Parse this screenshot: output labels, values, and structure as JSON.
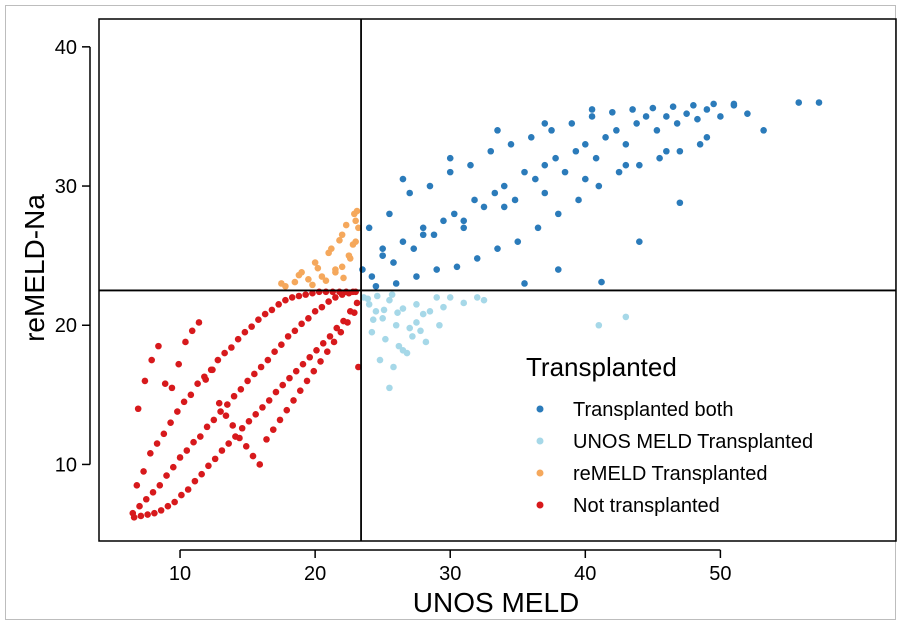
{
  "chart_data": {
    "type": "scatter",
    "xlabel": "UNOS MELD",
    "ylabel": "reMELD-Na",
    "xlim": [
      4,
      63
    ],
    "ylim": [
      4.5,
      42
    ],
    "xticks": [
      10,
      20,
      30,
      40,
      50
    ],
    "yticks": [
      10,
      20,
      30,
      40
    ],
    "grid": false,
    "legend_position": "lower-right inside plot",
    "reference_lines": {
      "vertical_x": 23.4,
      "horizontal_y": 22.5
    },
    "legend": {
      "title": "Transplanted",
      "entries": [
        {
          "label": "Transplanted both",
          "color": "#2b7bba"
        },
        {
          "label": "UNOS MELD Transplanted",
          "color": "#a6d8e8"
        },
        {
          "label": "reMELD Transplanted",
          "color": "#f5a85c"
        },
        {
          "label": "Not transplanted",
          "color": "#d7191c"
        }
      ]
    },
    "series": [
      {
        "name": "Transplanted both",
        "color": "#2b7bba",
        "x": [
          23.5,
          24.2,
          25,
          25.8,
          26.5,
          27.3,
          28,
          28.8,
          29.5,
          30.3,
          31,
          31.8,
          32.5,
          33.3,
          34,
          34.8,
          35.5,
          36.3,
          37,
          37.8,
          38.5,
          39.3,
          40,
          40.8,
          41.5,
          42.3,
          43,
          43.8,
          44.5,
          45.3,
          46,
          46.8,
          47.5,
          48.3,
          49,
          50,
          51,
          52,
          53.2,
          55.8,
          57.3,
          24,
          25.5,
          27,
          28.5,
          30,
          31.5,
          33,
          34.5,
          36,
          37.5,
          39,
          40.5,
          42,
          43.5,
          45,
          46.5,
          48,
          49.5,
          51,
          24.5,
          26,
          27.5,
          29,
          30.5,
          32,
          33.5,
          35,
          36.5,
          38,
          39.5,
          41,
          42.5,
          44,
          45.5,
          47,
          48.5,
          25,
          28,
          31,
          34,
          37,
          40,
          43,
          46,
          49,
          35.5,
          38,
          41.2,
          44,
          47,
          26.5,
          30,
          33.5,
          37,
          40.5
        ],
        "y": [
          24,
          23.5,
          25,
          24.5,
          26,
          25.5,
          27,
          26.5,
          27.5,
          28,
          27,
          29,
          28.5,
          29.5,
          30,
          29,
          31,
          30.5,
          31.5,
          32,
          31,
          32.5,
          33,
          32,
          33.5,
          34,
          33,
          34.5,
          35,
          34,
          35,
          34.5,
          35.2,
          34.8,
          35.5,
          35,
          35.8,
          35.2,
          34,
          36,
          36,
          27,
          28,
          29.5,
          30,
          31,
          31.5,
          32.5,
          33,
          33.5,
          34,
          34.5,
          35,
          35.3,
          35.5,
          35.6,
          35.7,
          35.8,
          35.9,
          35.9,
          22.8,
          23,
          23.5,
          24,
          24.2,
          24.8,
          25.5,
          26,
          27,
          28,
          29,
          30,
          31,
          31.5,
          32,
          32.5,
          33,
          25.5,
          26.5,
          27.5,
          28.5,
          29.5,
          30.5,
          31.5,
          32.5,
          33.5,
          23,
          24,
          23.1,
          26,
          28.8,
          30.5,
          32,
          34,
          34.5,
          35.5
        ]
      },
      {
        "name": "UNOS MELD Transplanted",
        "color": "#a6d8e8",
        "x": [
          23.6,
          24,
          24.5,
          25,
          25.5,
          26,
          26.5,
          27,
          27.5,
          28,
          28.5,
          29,
          29.5,
          30,
          31,
          32,
          32.5,
          24.2,
          25.2,
          26.2,
          27.2,
          28.2,
          29.2,
          24.8,
          25.8,
          26.8,
          27.8,
          25.5,
          26.5,
          27.5,
          41,
          43,
          24.3,
          25.1,
          26.1,
          23.9,
          24.6,
          25.7
        ],
        "y": [
          22,
          21.5,
          21,
          20.5,
          21.8,
          20,
          21.2,
          19.8,
          21.5,
          20.8,
          21,
          22,
          21.3,
          22,
          21.6,
          22,
          21.8,
          19.5,
          19,
          18.5,
          19.2,
          18.8,
          20,
          17.5,
          17,
          18,
          19.6,
          15.5,
          18.2,
          20.2,
          20,
          20.6,
          20.4,
          21.1,
          20.9,
          21.9,
          22.1,
          22.2
        ]
      },
      {
        "name": "reMELD Transplanted",
        "color": "#f5a85c",
        "x": [
          17.5,
          18.5,
          19.5,
          20.5,
          21.5,
          22,
          22.5,
          23,
          19,
          20,
          21,
          22,
          23,
          21.5,
          22.3,
          23.1,
          22.8,
          21.8,
          20.8,
          22.6,
          23.2,
          22.1,
          21.2,
          20.2,
          19.8,
          18.8,
          17.8,
          22.9
        ],
        "y": [
          23,
          23.1,
          23.3,
          23.5,
          23.8,
          24.2,
          25,
          26,
          23.8,
          24.5,
          25.2,
          26.5,
          27.5,
          24,
          27.2,
          28.2,
          25.8,
          26.1,
          23.2,
          24.8,
          27,
          23.4,
          25.5,
          24.1,
          22.9,
          23.6,
          22.8,
          28
        ]
      },
      {
        "name": "Not transplanted",
        "color": "#d7191c",
        "x": [
          6.5,
          7,
          7.5,
          8,
          8.5,
          9,
          9.5,
          10,
          10.5,
          11,
          11.5,
          12,
          12.5,
          13,
          13.5,
          14,
          14.5,
          15,
          15.5,
          16,
          16.5,
          17,
          17.5,
          18,
          18.5,
          19,
          19.5,
          20,
          20.5,
          21,
          21.5,
          22,
          22.5,
          23,
          23.2,
          6.8,
          7.3,
          7.8,
          8.3,
          8.8,
          9.3,
          9.8,
          10.3,
          10.8,
          11.3,
          11.8,
          12.3,
          12.8,
          13.3,
          13.8,
          14.3,
          14.8,
          15.3,
          15.8,
          16.3,
          16.8,
          17.3,
          17.8,
          18.3,
          18.8,
          19.3,
          19.8,
          20.3,
          20.8,
          21.3,
          21.8,
          22.3,
          22.8,
          6.6,
          7.1,
          7.6,
          8.1,
          8.6,
          9.1,
          9.6,
          10.1,
          10.6,
          11.1,
          11.6,
          12.1,
          12.6,
          13.1,
          13.6,
          14.1,
          14.6,
          15.1,
          15.6,
          16.1,
          16.6,
          17.1,
          17.6,
          18.1,
          18.6,
          19.1,
          19.6,
          20.1,
          20.6,
          21.1,
          21.6,
          22.1,
          22.6,
          23.1,
          6.9,
          7.4,
          7.9,
          8.4,
          8.9,
          9.4,
          9.9,
          10.4,
          10.9,
          11.4,
          11.9,
          12.4,
          12.9,
          13.4,
          13.9,
          14.4,
          14.9,
          15.4,
          15.9,
          16.4,
          16.9,
          17.4,
          17.9,
          18.4,
          18.9,
          19.4,
          19.9,
          20.4,
          20.9,
          21.4,
          21.9,
          22.4,
          22.9
        ],
        "y": [
          6.5,
          7,
          7.5,
          8,
          8.5,
          9.2,
          9.8,
          10.5,
          11,
          11.6,
          12,
          12.7,
          13.2,
          13.8,
          14.3,
          14.9,
          15.4,
          16,
          16.5,
          17,
          17.5,
          18.1,
          18.6,
          19.2,
          19.6,
          20.1,
          20.5,
          21,
          21.3,
          21.7,
          22,
          22.2,
          22.3,
          22.4,
          17,
          8.5,
          9.5,
          10.8,
          11.5,
          12.2,
          13,
          13.8,
          14.5,
          15,
          15.8,
          16.3,
          16.8,
          17.5,
          18,
          18.4,
          19,
          19.5,
          19.9,
          20.4,
          20.8,
          21.1,
          21.5,
          21.8,
          22,
          22.1,
          22.2,
          22.3,
          22.4,
          22.4,
          22.4,
          22.4,
          22.4,
          22.4,
          6.2,
          6.3,
          6.4,
          6.5,
          6.7,
          7,
          7.3,
          7.8,
          8.2,
          8.8,
          9.3,
          9.9,
          10.4,
          11,
          11.5,
          12,
          12.6,
          13.1,
          13.6,
          14.1,
          14.6,
          15.2,
          15.7,
          16.2,
          16.7,
          17.2,
          17.7,
          18.2,
          18.7,
          19.2,
          19.8,
          20.3,
          21,
          21.6,
          14,
          16,
          17.5,
          18.5,
          15.8,
          15.5,
          17.2,
          18.8,
          19.6,
          20.2,
          16.1,
          16.8,
          14.4,
          13.5,
          12.8,
          11.9,
          11.3,
          10.6,
          10,
          11.8,
          12.5,
          13.2,
          13.9,
          14.6,
          15.3,
          16,
          16.7,
          17.4,
          18.1,
          18.8,
          19.5,
          20.2,
          20.9
        ]
      }
    ]
  }
}
